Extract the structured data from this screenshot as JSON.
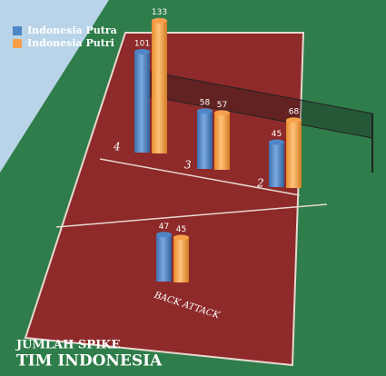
{
  "chart_data": {
    "type": "bar",
    "title": "JUMLAH SPIKE",
    "subtitle": "TIM INDONESIA",
    "categories": [
      "4",
      "3",
      "2",
      "BACK ATTACK"
    ],
    "series": [
      {
        "name": "Indonesia Putra",
        "color": "#4f86c6",
        "values": [
          101,
          58,
          45,
          47
        ]
      },
      {
        "name": "Indonesia Putri",
        "color": "#f7a04a",
        "values": [
          133,
          57,
          68,
          45
        ]
      }
    ]
  }
}
